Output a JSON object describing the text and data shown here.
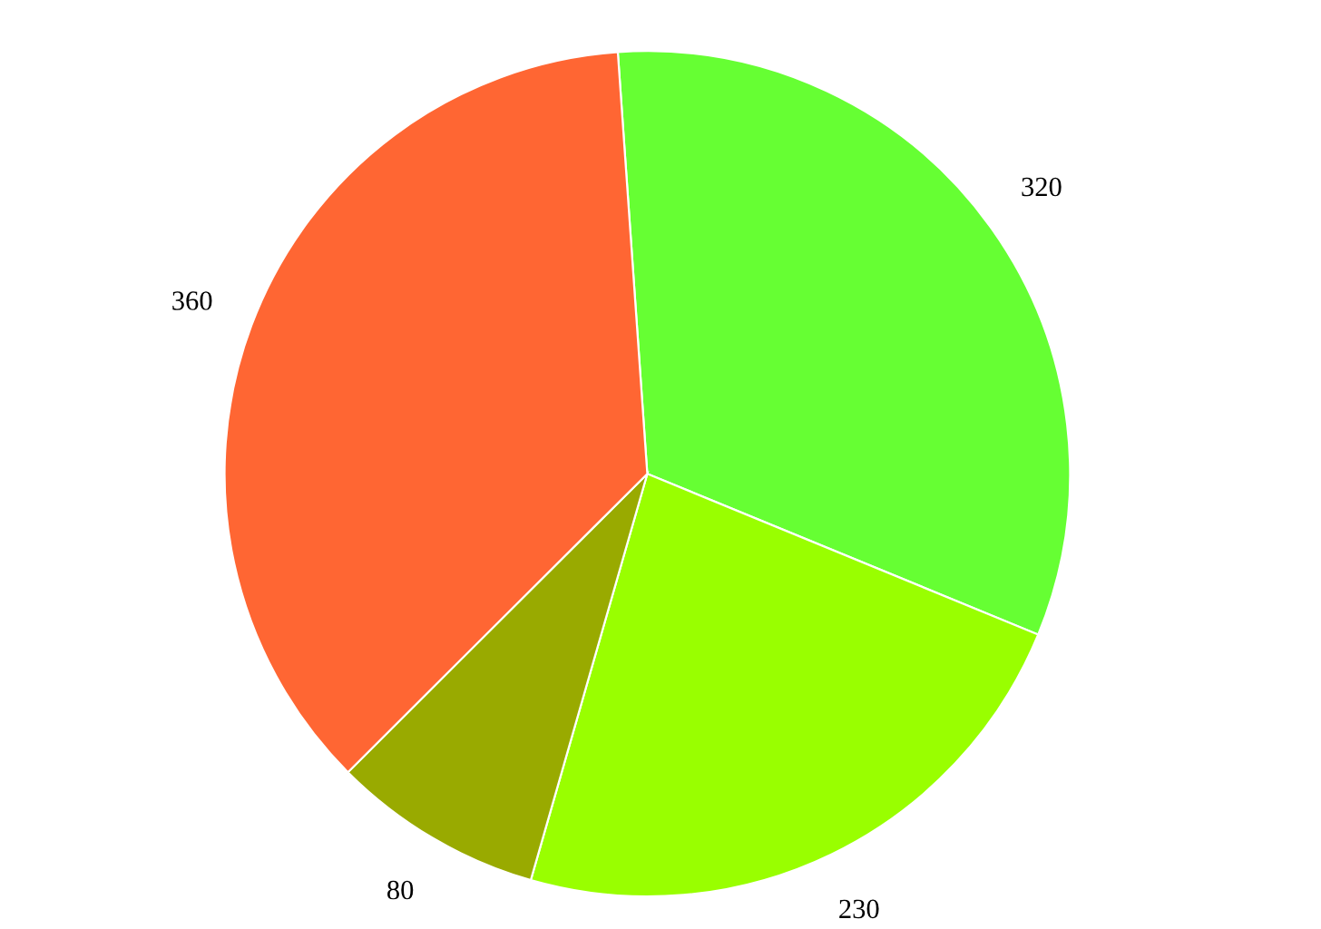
{
  "chart_data": {
    "type": "pie",
    "categories": [
      null,
      null,
      null,
      null
    ],
    "values": [
      320,
      230,
      80,
      360
    ],
    "colors": [
      "#66ff33",
      "#99ff00",
      "#99aa00",
      "#ff6633"
    ],
    "data_labels": true
  }
}
